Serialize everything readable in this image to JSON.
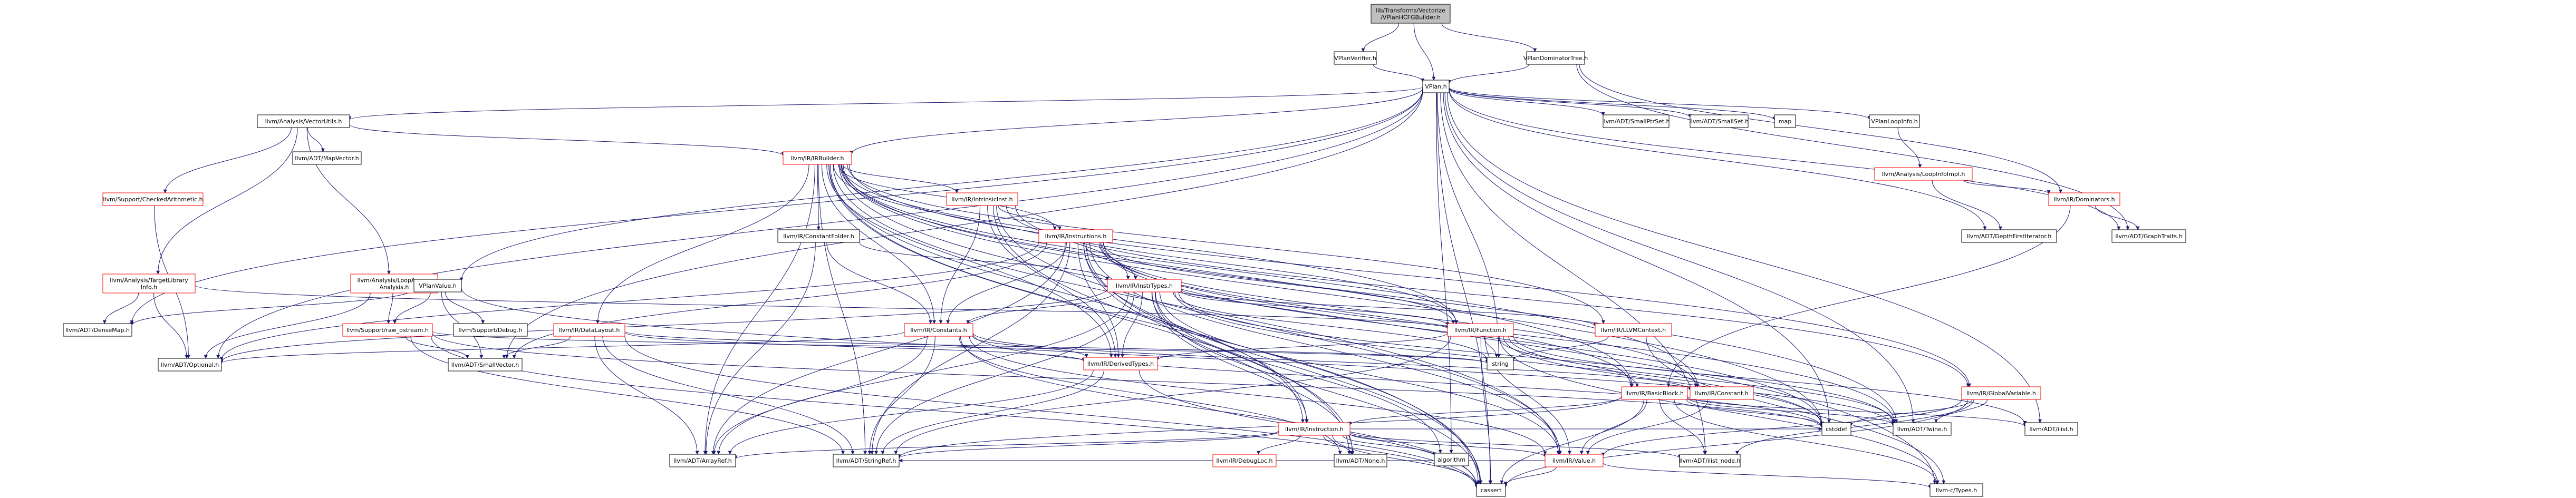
{
  "colors": {
    "background": "#ffffff",
    "root_fill": "#bfbfbf",
    "node_fill": "#ffffff",
    "node_border": "#000000",
    "link_border": "#ff0000",
    "plain_text": "#000000",
    "link_text": "#000000",
    "edge": "#191970"
  },
  "nodes": {
    "root": {
      "label_lines": [
        "lib/Transforms/Vectorize",
        "/VPlanHCFGBuilder.h"
      ],
      "style": "root"
    },
    "vplanverifier": {
      "label_lines": [
        "VPlanVerifier.h"
      ],
      "style": "plain"
    },
    "vplandomtree": {
      "label_lines": [
        "VPlanDominatorTree.h"
      ],
      "style": "plain"
    },
    "vplan": {
      "label_lines": [
        "VPlan.h"
      ],
      "style": "plain"
    },
    "vectorutils": {
      "label_lines": [
        "llvm/Analysis/VectorUtils.h"
      ],
      "style": "plain"
    },
    "smallptrset": {
      "label_lines": [
        "llvm/ADT/SmallPtrSet.h"
      ],
      "style": "plain"
    },
    "smallset": {
      "label_lines": [
        "llvm/ADT/SmallSet.h"
      ],
      "style": "plain"
    },
    "map": {
      "label_lines": [
        "map"
      ],
      "style": "plain"
    },
    "vplanloopinfo": {
      "label_lines": [
        "VPlanLoopInfo.h"
      ],
      "style": "plain"
    },
    "mapvector": {
      "label_lines": [
        "llvm/ADT/MapVector.h"
      ],
      "style": "plain"
    },
    "irbuilder": {
      "label_lines": [
        "llvm/IR/IRBuilder.h"
      ],
      "style": "link"
    },
    "loopinfoimpl": {
      "label_lines": [
        "llvm/Analysis/LoopInfoImpl.h"
      ],
      "style": "link"
    },
    "checkedarith": {
      "label_lines": [
        "llvm/Support/CheckedArithmetic.h"
      ],
      "style": "link"
    },
    "intrinsicinst": {
      "label_lines": [
        "llvm/IR/IntrinsicInst.h"
      ],
      "style": "link"
    },
    "dominators": {
      "label_lines": [
        "llvm/IR/Dominators.h"
      ],
      "style": "link"
    },
    "constantfolder": {
      "label_lines": [
        "llvm/IR/ConstantFolder.h"
      ],
      "style": "plain"
    },
    "instructions": {
      "label_lines": [
        "llvm/IR/Instructions.h"
      ],
      "style": "link"
    },
    "depthfirst": {
      "label_lines": [
        "llvm/ADT/DepthFirstIterator.h"
      ],
      "style": "plain"
    },
    "graphtraits": {
      "label_lines": [
        "llvm/ADT/GraphTraits.h"
      ],
      "style": "plain"
    },
    "targetlib": {
      "label_lines": [
        "llvm/Analysis/TargetLibrary",
        "Info.h"
      ],
      "style": "link"
    },
    "loopaccess": {
      "label_lines": [
        "llvm/Analysis/LoopAccess",
        "Analysis.h"
      ],
      "style": "link"
    },
    "vplanvalue": {
      "label_lines": [
        "VPlanValue.h"
      ],
      "style": "plain"
    },
    "insttypes": {
      "label_lines": [
        "llvm/IR/InstrTypes.h"
      ],
      "style": "link"
    },
    "densemap": {
      "label_lines": [
        "llvm/ADT/DenseMap.h"
      ],
      "style": "plain"
    },
    "rawostream": {
      "label_lines": [
        "llvm/Support/raw_ostream.h"
      ],
      "style": "link"
    },
    "debug": {
      "label_lines": [
        "llvm/Support/Debug.h"
      ],
      "style": "plain"
    },
    "datalayout": {
      "label_lines": [
        "llvm/IR/DataLayout.h"
      ],
      "style": "link"
    },
    "constants": {
      "label_lines": [
        "llvm/IR/Constants.h"
      ],
      "style": "link"
    },
    "function": {
      "label_lines": [
        "llvm/IR/Function.h"
      ],
      "style": "link"
    },
    "llvmcontext": {
      "label_lines": [
        "llvm/IR/LLVMContext.h"
      ],
      "style": "link"
    },
    "optional": {
      "label_lines": [
        "llvm/ADT/Optional.h"
      ],
      "style": "plain"
    },
    "smallvector": {
      "label_lines": [
        "llvm/ADT/SmallVector.h"
      ],
      "style": "plain"
    },
    "string": {
      "label_lines": [
        "string"
      ],
      "style": "plain"
    },
    "derivedtypes": {
      "label_lines": [
        "llvm/IR/DerivedTypes.h"
      ],
      "style": "link"
    },
    "constant": {
      "label_lines": [
        "llvm/IR/Constant.h"
      ],
      "style": "link"
    },
    "basicblock": {
      "label_lines": [
        "llvm/IR/BasicBlock.h"
      ],
      "style": "link"
    },
    "globalvariable": {
      "label_lines": [
        "llvm/IR/GlobalVariable.h"
      ],
      "style": "link"
    },
    "cstddef": {
      "label_lines": [
        "cstddef"
      ],
      "style": "plain"
    },
    "twine": {
      "label_lines": [
        "llvm/ADT/Twine.h"
      ],
      "style": "plain"
    },
    "ilist": {
      "label_lines": [
        "llvm/ADT/ilist.h"
      ],
      "style": "plain"
    },
    "instruction": {
      "label_lines": [
        "llvm/IR/Instruction.h"
      ],
      "style": "link"
    },
    "algorithm": {
      "label_lines": [
        "algorithm"
      ],
      "style": "plain"
    },
    "arrayref": {
      "label_lines": [
        "llvm/ADT/ArrayRef.h"
      ],
      "style": "plain"
    },
    "stringref": {
      "label_lines": [
        "llvm/ADT/StringRef.h"
      ],
      "style": "plain"
    },
    "debugloc": {
      "label_lines": [
        "llvm/IR/DebugLoc.h"
      ],
      "style": "link"
    },
    "none": {
      "label_lines": [
        "llvm/ADT/None.h"
      ],
      "style": "plain"
    },
    "value": {
      "label_lines": [
        "llvm/IR/Value.h"
      ],
      "style": "link"
    },
    "ilistnode": {
      "label_lines": [
        "llvm/ADT/ilist_node.h"
      ],
      "style": "plain"
    },
    "cassert": {
      "label_lines": [
        "cassert"
      ],
      "style": "plain"
    },
    "ctypes": {
      "label_lines": [
        "llvm-c/Types.h"
      ],
      "style": "plain"
    }
  }
}
